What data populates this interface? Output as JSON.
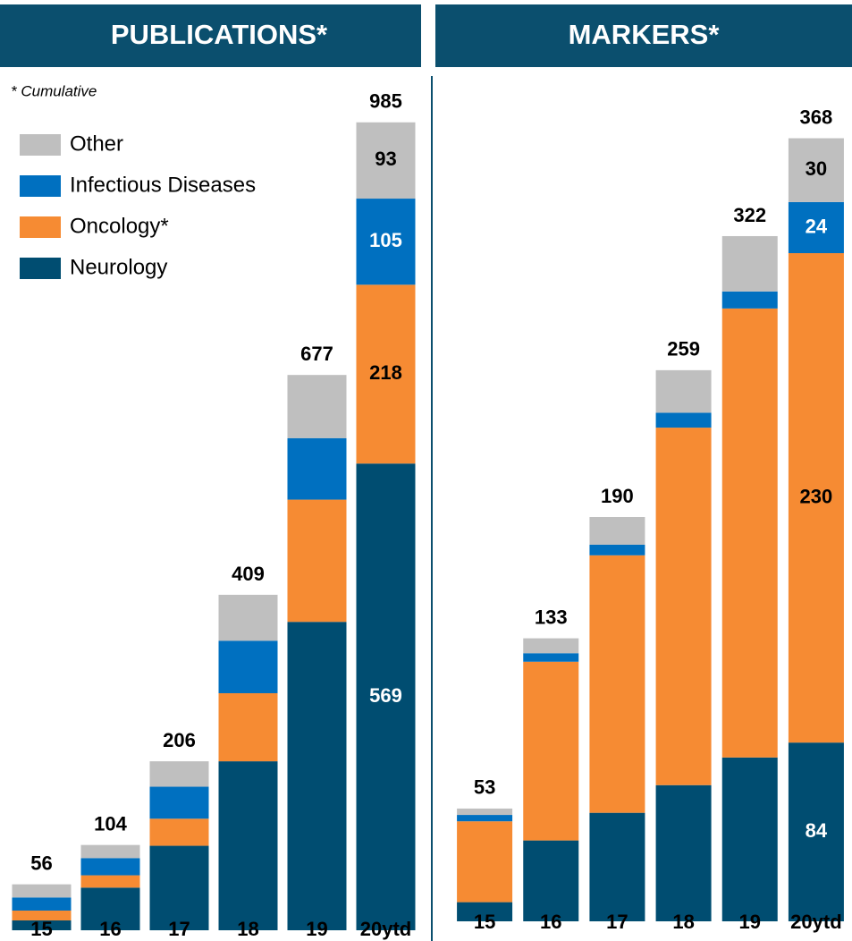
{
  "chart_data": [
    {
      "type": "stacked_bar",
      "title": "PUBLICATIONS*",
      "annotation": "* Cumulative",
      "categories": [
        "15",
        "16",
        "17",
        "18",
        "19",
        "20ytd"
      ],
      "totals": [
        56,
        104,
        206,
        409,
        677,
        985
      ],
      "ylim": [
        0,
        1000
      ],
      "legend": "upper left",
      "series": [
        {
          "name": "Neurology",
          "color": "#004d71",
          "values": [
            12,
            52,
            103,
            206,
            376,
            569
          ],
          "value_labels": [
            null,
            null,
            null,
            null,
            null,
            "569"
          ]
        },
        {
          "name": "Oncology*",
          "color": "#f68b33",
          "values": [
            12,
            15,
            33,
            83,
            149,
            218
          ],
          "value_labels": [
            null,
            null,
            null,
            null,
            null,
            "218"
          ]
        },
        {
          "name": "Infectious Diseases",
          "color": "#0070c0",
          "values": [
            16,
            21,
            39,
            64,
            75,
            105
          ],
          "value_labels": [
            null,
            null,
            null,
            null,
            null,
            "105"
          ]
        },
        {
          "name": "Other",
          "color": "#bfbfbf",
          "values": [
            16,
            16,
            31,
            56,
            77,
            93
          ],
          "value_labels": [
            null,
            null,
            null,
            null,
            null,
            "93"
          ]
        }
      ]
    },
    {
      "type": "stacked_bar",
      "title": "MARKERS*",
      "categories": [
        "15",
        "16",
        "17",
        "18",
        "19",
        "20ytd"
      ],
      "totals": [
        53,
        133,
        190,
        259,
        322,
        368
      ],
      "ylim": [
        0,
        380
      ],
      "series": [
        {
          "color": "#004d71",
          "values": [
            9,
            38,
            51,
            64,
            77,
            84
          ],
          "value_labels": [
            null,
            null,
            null,
            null,
            null,
            "84"
          ]
        },
        {
          "color": "#f68b33",
          "values": [
            38,
            84,
            121,
            168,
            211,
            230
          ],
          "value_labels": [
            null,
            null,
            null,
            null,
            null,
            "230"
          ]
        },
        {
          "color": "#0070c0",
          "values": [
            3,
            4,
            5,
            7,
            8,
            24
          ],
          "value_labels": [
            null,
            null,
            null,
            null,
            null,
            "24"
          ]
        },
        {
          "color": "#bfbfbf",
          "values": [
            3,
            7,
            13,
            20,
            26,
            30
          ],
          "value_labels": [
            null,
            null,
            null,
            null,
            null,
            "30"
          ]
        }
      ]
    }
  ]
}
